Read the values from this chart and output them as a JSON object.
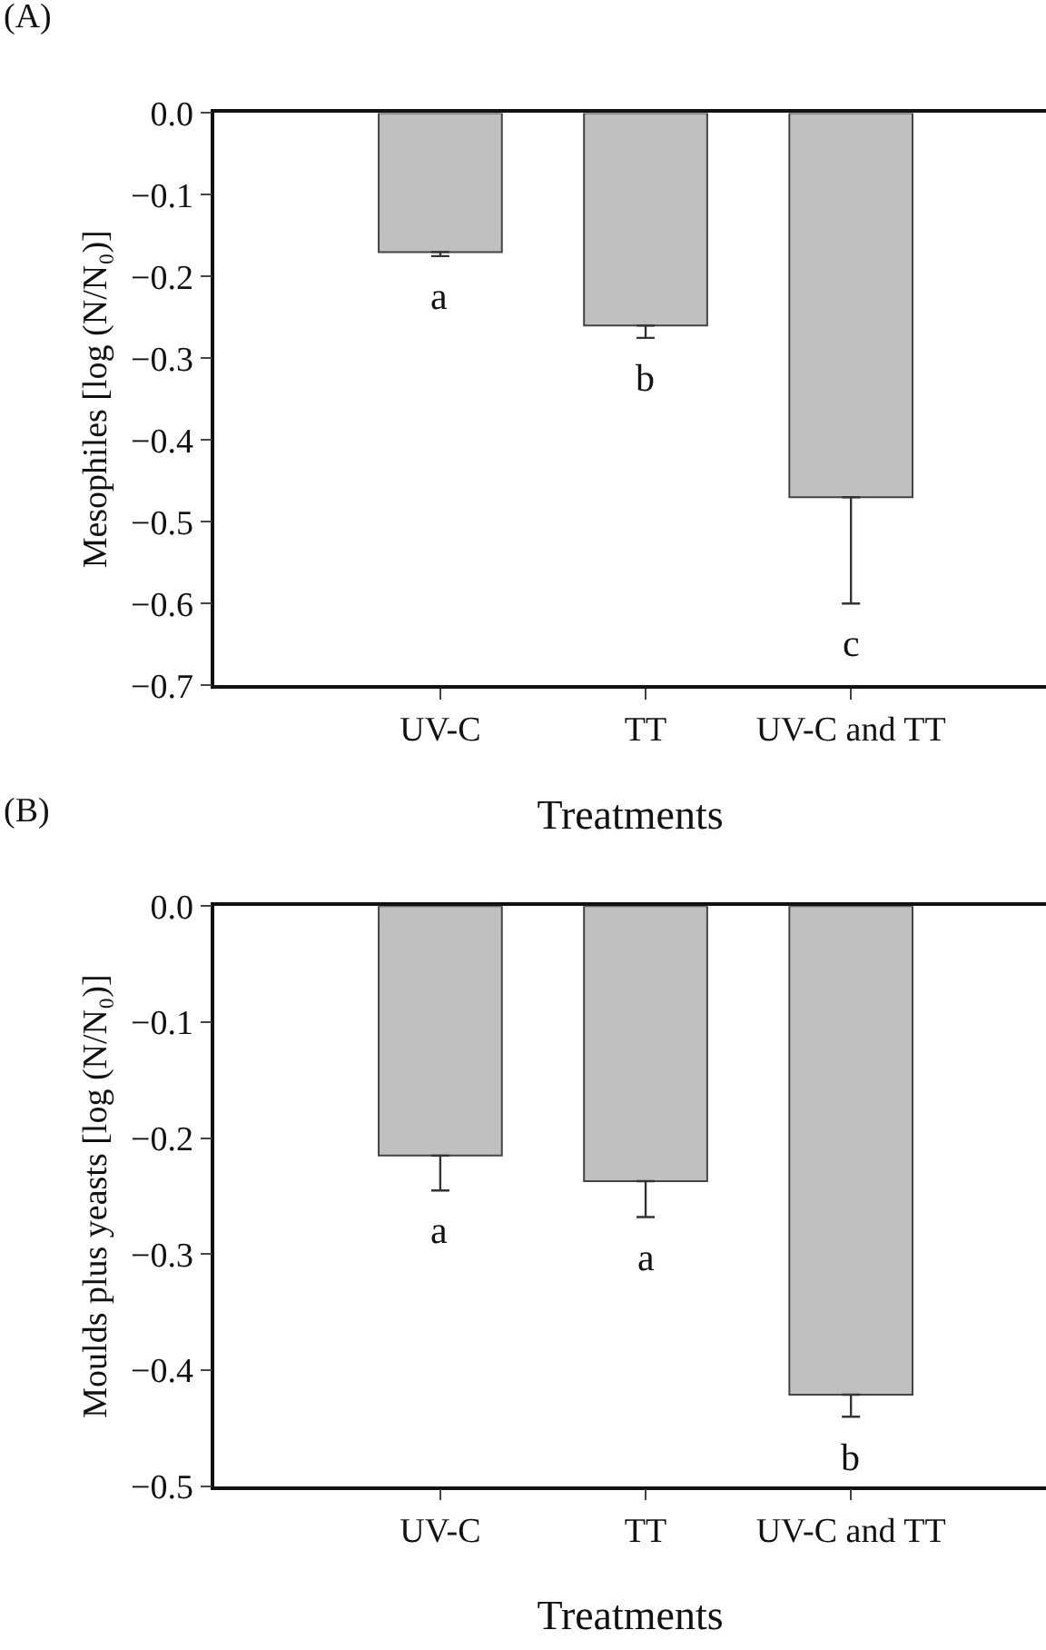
{
  "chart_data": [
    {
      "type": "bar",
      "title": "(A)",
      "xlabel": "Treatments",
      "ylabel": "Mesophiles [log (N/N₀)]",
      "categories": [
        "UV-C",
        "TT",
        "UV-C and TT"
      ],
      "series": [
        {
          "color": "#c0c0c0",
          "values": [
            -0.17,
            -0.26,
            -0.47
          ],
          "errors": [
            [
              -0.175,
              -0.17
            ],
            [
              -0.275,
              -0.26
            ],
            [
              -0.6,
              -0.47
            ]
          ]
        }
      ],
      "ylim": [
        -0.7,
        0.0
      ],
      "yticks": [
        {
          "value": 0,
          "label": "0.0"
        },
        -0.1,
        -0.2,
        -0.3,
        -0.4,
        -0.5,
        -0.6,
        -0.7
      ],
      "annotations": [
        "a",
        "b",
        "c"
      ]
    },
    {
      "type": "bar",
      "title": "(B)",
      "xlabel": "Treatments",
      "ylabel": "Moulds plus yeasts [log (N/N₀)]",
      "categories": [
        "UV-C",
        "TT",
        "UV-C and TT"
      ],
      "series": [
        {
          "color": "#c0c0c0",
          "values": [
            -0.215,
            -0.237,
            -0.421
          ],
          "errors": [
            [
              -0.245,
              -0.215
            ],
            [
              -0.268,
              -0.237
            ],
            [
              -0.44,
              -0.421
            ]
          ]
        }
      ],
      "ylim": [
        -0.5,
        0.0
      ],
      "yticks": [
        {
          "value": 0,
          "label": "0.0"
        },
        -0.1,
        -0.2,
        -0.3,
        -0.4,
        -0.5
      ],
      "annotations": [
        "a",
        "a",
        "b"
      ]
    }
  ]
}
